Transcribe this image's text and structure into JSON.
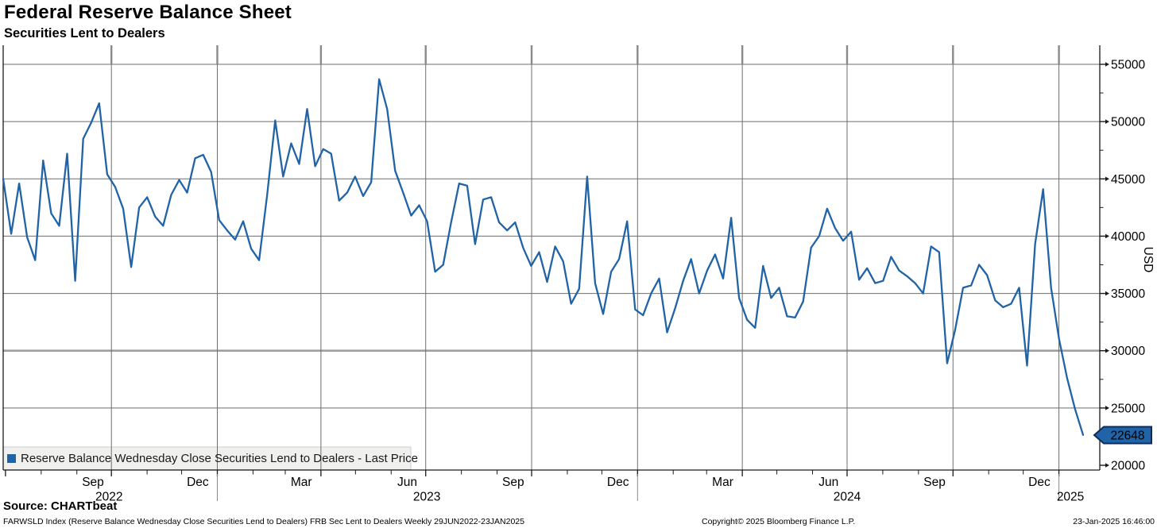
{
  "header": {
    "title": "Federal Reserve Balance Sheet",
    "subtitle": "Securities Lent to Dealers"
  },
  "legend": {
    "label": "Reserve Balance Wednesday Close Securities Lend to Dealers - Last Price",
    "marker_color": "#2063a7"
  },
  "chart_data": {
    "type": "line",
    "title": "Federal Reserve Balance Sheet - Securities Lent to Dealers",
    "unit": "USD",
    "frequency": "weekly",
    "x_start": "2022-06-29",
    "x_end": "2025-01-22",
    "ylim": [
      20000,
      55000
    ],
    "y_tick_step": 5000,
    "y_minor_step": 2500,
    "grid": true,
    "reference_line_value": 30000,
    "last_price": "22648",
    "legend_position": "bottom-left",
    "series": [
      {
        "name": "Reserve Balance Wednesday Close Securities Lend to Dealers - Last Price",
        "color": "#2063a7",
        "values": [
          45000,
          40200,
          44600,
          39900,
          37900,
          46600,
          42000,
          40900,
          47200,
          36100,
          48500,
          49900,
          51600,
          45400,
          44300,
          42400,
          37300,
          42500,
          43400,
          41700,
          40900,
          43600,
          44900,
          43800,
          46800,
          47100,
          45600,
          41400,
          40500,
          39700,
          41300,
          38900,
          37900,
          43600,
          50100,
          45200,
          48100,
          46300,
          51100,
          46100,
          47600,
          47200,
          43100,
          43800,
          45200,
          43500,
          44700,
          53700,
          51100,
          45700,
          43800,
          41800,
          42700,
          41300,
          36900,
          37500,
          41200,
          44600,
          44400,
          39300,
          43200,
          43400,
          41200,
          40500,
          41200,
          39000,
          37400,
          38600,
          36000,
          39100,
          37800,
          34100,
          35400,
          45200,
          35900,
          33200,
          36900,
          38000,
          41300,
          33600,
          33100,
          35000,
          36300,
          31600,
          33700,
          36100,
          38000,
          35000,
          37000,
          38400,
          36300,
          41600,
          34600,
          32700,
          32000,
          37400,
          34600,
          35500,
          33000,
          32900,
          34300,
          39000,
          40000,
          42400,
          40700,
          39600,
          40400,
          36200,
          37200,
          35900,
          36100,
          38200,
          37000,
          36500,
          35900,
          35000,
          39100,
          38600,
          28900,
          31800,
          35500,
          35700,
          37500,
          36600,
          34400,
          33800,
          34100,
          35500,
          28700,
          39300,
          44100,
          35500,
          31000,
          27600,
          24900,
          22648
        ]
      }
    ],
    "x_axis": {
      "month_ticks": [
        {
          "label": "Sep",
          "date": "2022-09-15"
        },
        {
          "label": "Dec",
          "date": "2022-12-15"
        },
        {
          "label": "Mar",
          "date": "2023-03-15"
        },
        {
          "label": "Jun",
          "date": "2023-06-15"
        },
        {
          "label": "Sep",
          "date": "2023-09-15"
        },
        {
          "label": "Dec",
          "date": "2023-12-15"
        },
        {
          "label": "Mar",
          "date": "2024-03-15"
        },
        {
          "label": "Jun",
          "date": "2024-06-15"
        },
        {
          "label": "Sep",
          "date": "2024-09-15"
        },
        {
          "label": "Dec",
          "date": "2024-12-15"
        }
      ],
      "year_ticks": [
        {
          "label": "2022",
          "date": "2022-09-29"
        },
        {
          "label": "2023",
          "date": "2023-07-02"
        },
        {
          "label": "2024",
          "date": "2024-07-01"
        },
        {
          "label": "2025",
          "date": "2025-01-11"
        }
      ]
    },
    "y_axis": {
      "label": "USD",
      "tick_labels": [
        "20000",
        "25000",
        "30000",
        "35000",
        "40000",
        "45000",
        "50000",
        "55000"
      ]
    }
  },
  "badge": {
    "value": "22648",
    "fill": "#2063a7",
    "border": "#0c2d5c"
  },
  "footer": {
    "source": "Source: CHARTbeat",
    "description": "FARWSLD Index (Reserve Balance Wednesday Close Securities Lend to Dealers) FRB Sec Lent to Dealers  Weekly 29JUN2022-23JAN2025",
    "copyright": "Copyright© 2025 Bloomberg Finance L.P.",
    "datetime": "23-Jan-2025 16:46:00"
  },
  "colors": {
    "line": "#2063a7",
    "grid": "#6e6e6e",
    "grid_stub": "#8a8a8a",
    "axis": "#1a1a1a",
    "reference_line": "#9f9f9f",
    "legend_bg": "#f0f0ee",
    "legend_border": "#cdcdcd"
  }
}
